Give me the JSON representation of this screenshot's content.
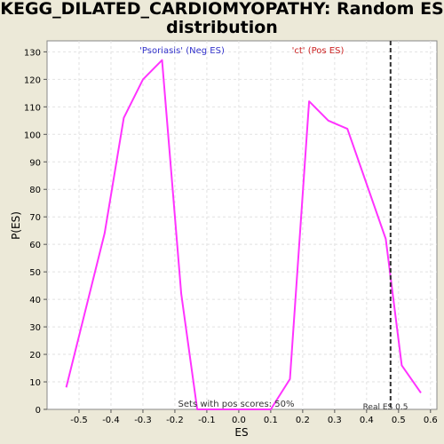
{
  "title_line1": "KEGG_DILATED_CARDIOMYOPATHY: Random ES",
  "title_line2": "distribution",
  "chart_data": {
    "type": "line",
    "title": "KEGG_DILATED_CARDIOMYOPATHY: Random ES distribution",
    "xlabel": "ES",
    "ylabel": "P(ES)",
    "xlim": [
      -0.6,
      0.62
    ],
    "ylim": [
      0,
      134
    ],
    "x_ticks": [
      -0.5,
      -0.4,
      -0.3,
      -0.2,
      -0.1,
      0.0,
      0.1,
      0.2,
      0.3,
      0.4,
      0.5,
      0.6
    ],
    "x_tick_labels": [
      "-0.5",
      "-0.4",
      "-0.3",
      "-0.2",
      "-0.1",
      "0.0",
      "0.1",
      "0.2",
      "0.3",
      "0.4",
      "0.5",
      "0.6"
    ],
    "y_ticks": [
      0,
      10,
      20,
      30,
      40,
      50,
      60,
      70,
      80,
      90,
      100,
      110,
      120,
      130
    ],
    "grid": true,
    "series": [
      {
        "color": "#ff33ff",
        "x": [
          -0.54,
          -0.48,
          -0.42,
          -0.36,
          -0.3,
          -0.24,
          -0.18,
          -0.13,
          -0.07,
          -0.01,
          0.05,
          0.1,
          0.16,
          0.22,
          0.28,
          0.34,
          0.4,
          0.46,
          0.51,
          0.57
        ],
        "y": [
          8,
          36,
          64,
          106,
          120,
          127,
          42,
          0,
          0,
          0,
          0,
          0,
          11,
          112,
          105,
          102,
          82,
          62,
          16,
          6
        ]
      }
    ],
    "real_es": 0.475,
    "real_es_label": "Real ES 0.5",
    "neg_label": "'Psoriasis' (Neg ES)",
    "pos_label": "'ct' (Pos ES)",
    "pos_scores_label": "Sets with pos scores: 50%",
    "colors": {
      "neg_label": "#3333cc",
      "pos_label": "#cc2222",
      "line": "#ff33ff",
      "real_es_line": "#333333"
    }
  }
}
